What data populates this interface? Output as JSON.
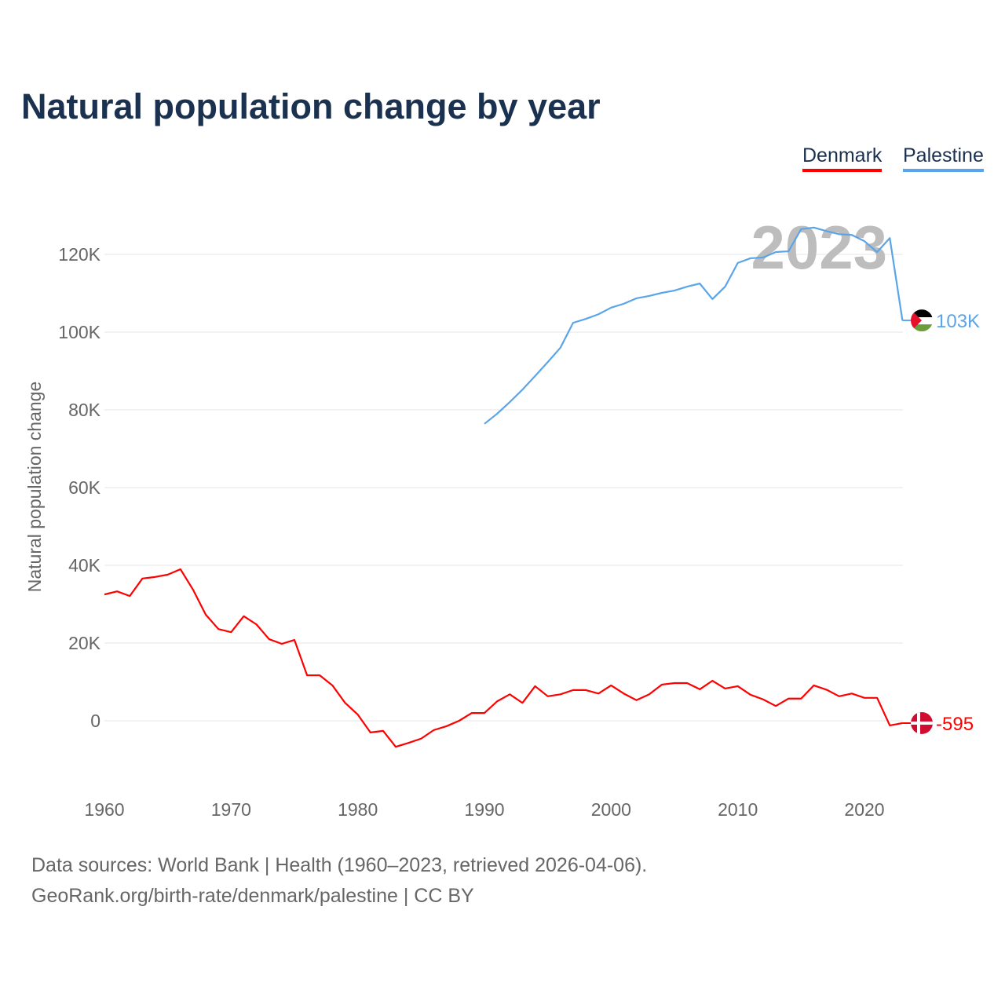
{
  "chart_data": {
    "type": "line",
    "title": "Natural population change by year",
    "xlabel": "",
    "ylabel": "Natural population change",
    "xlim": [
      1960,
      2023
    ],
    "ylim": [
      -20000,
      130000
    ],
    "x_ticks": [
      1960,
      1970,
      1980,
      1990,
      2000,
      2010,
      2020
    ],
    "x_tick_labels": [
      "1960",
      "1970",
      "1980",
      "1990",
      "2000",
      "2010",
      "2020"
    ],
    "y_ticks": [
      0,
      20000,
      40000,
      60000,
      80000,
      100000,
      120000
    ],
    "y_tick_labels": [
      "0",
      "20K",
      "40K",
      "60K",
      "80K",
      "100K",
      "120K"
    ],
    "grid": true,
    "legend_position": "top-right",
    "current_year_label": "2023",
    "series": [
      {
        "name": "Denmark",
        "color": "#ff0000",
        "end_label": "-595",
        "flag": "denmark-flag",
        "start_year": 1960,
        "values": [
          32500,
          33300,
          32100,
          36600,
          37000,
          37600,
          39000,
          33700,
          27300,
          23600,
          22800,
          26900,
          24800,
          21000,
          19800,
          20800,
          11700,
          11700,
          9100,
          4600,
          1600,
          -3000,
          -2600,
          -6700,
          -5700,
          -4600,
          -2400,
          -1400,
          0,
          2000,
          2000,
          5000,
          6800,
          4600,
          8900,
          6300,
          6800,
          7900,
          7900,
          7000,
          9100,
          7000,
          5300,
          6800,
          9300,
          9700,
          9700,
          8100,
          10300,
          8300,
          8900,
          6700,
          5500,
          3800,
          5700,
          5700,
          9100,
          8000,
          6300,
          7000,
          5900,
          5900,
          -1200,
          -595
        ]
      },
      {
        "name": "Palestine",
        "color": "#5aa5ea",
        "end_label": "103K",
        "flag": "palestine-flag",
        "start_year": 1990,
        "values": [
          76400,
          79000,
          82000,
          85200,
          88700,
          92300,
          96000,
          102400,
          103400,
          104600,
          106300,
          107300,
          108700,
          109300,
          110100,
          110700,
          111700,
          112500,
          108500,
          111700,
          117800,
          119000,
          119200,
          120600,
          120800,
          126500,
          126900,
          126000,
          125200,
          125000,
          123400,
          120600,
          124200,
          103000
        ]
      }
    ]
  },
  "footer": {
    "line1": "Data sources: World Bank | Health (1960–2023, retrieved 2026-04-06).",
    "line2": "GeoRank.org/birth-rate/denmark/palestine | CC BY"
  }
}
